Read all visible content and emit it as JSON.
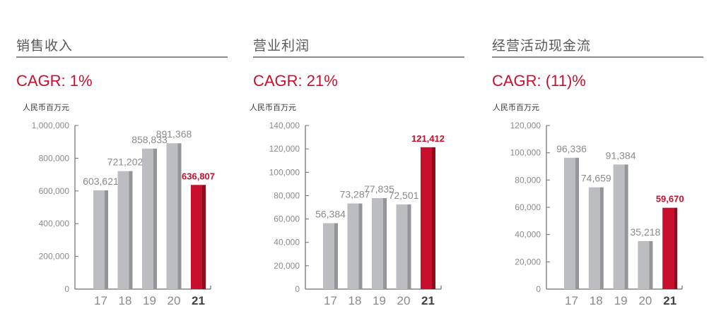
{
  "colors": {
    "accent": "#c8102e",
    "accent_dark": "#8e0c1c",
    "bar": "#bcbdc0",
    "bar_shade": "#939598",
    "axis": "#6d6d6d",
    "text_gray": "#8a8a8a"
  },
  "panels": [
    {
      "title": "销售收入",
      "cagr": "CAGR: 1%",
      "unit": "人民币百万元"
    },
    {
      "title": "营业利润",
      "cagr": "CAGR: 21%",
      "unit": "人民币百万元"
    },
    {
      "title": "经营活动现金流",
      "cagr": "CAGR: (11)%",
      "unit": "人民币百万元"
    }
  ],
  "chart_data": [
    {
      "type": "bar",
      "title": "销售收入",
      "subtitle": "CAGR: 1%",
      "ylabel": "人民币百万元",
      "xlabel": "",
      "categories": [
        "17",
        "18",
        "19",
        "20",
        "21"
      ],
      "values": [
        603621,
        721202,
        858833,
        891368,
        636807
      ],
      "value_labels": [
        "603,621",
        "721,202",
        "858,833",
        "891,368",
        "636,807"
      ],
      "highlight_index": 4,
      "ylim": [
        0,
        1000000
      ],
      "yticks": [
        0,
        200000,
        400000,
        600000,
        800000,
        1000000
      ],
      "ytick_labels": [
        "0",
        "200,000",
        "400,000",
        "600,000",
        "800,000",
        "1,000,000"
      ],
      "grid": false,
      "legend": null
    },
    {
      "type": "bar",
      "title": "营业利润",
      "subtitle": "CAGR: 21%",
      "ylabel": "人民币百万元",
      "xlabel": "",
      "categories": [
        "17",
        "18",
        "19",
        "20",
        "21"
      ],
      "values": [
        56384,
        73287,
        77835,
        72501,
        121412
      ],
      "value_labels": [
        "56,384",
        "73,287",
        "77,835",
        "72,501",
        "121,412"
      ],
      "highlight_index": 4,
      "ylim": [
        0,
        140000
      ],
      "yticks": [
        0,
        20000,
        40000,
        60000,
        80000,
        100000,
        120000,
        140000
      ],
      "ytick_labels": [
        "0",
        "20,000",
        "40,000",
        "60,000",
        "80,000",
        "100,000",
        "120,000",
        "140,000"
      ],
      "grid": false,
      "legend": null
    },
    {
      "type": "bar",
      "title": "经营活动现金流",
      "subtitle": "CAGR: (11)%",
      "ylabel": "人民币百万元",
      "xlabel": "",
      "categories": [
        "17",
        "18",
        "19",
        "20",
        "21"
      ],
      "values": [
        96336,
        74659,
        91384,
        35218,
        59670
      ],
      "value_labels": [
        "96,336",
        "74,659",
        "91,384",
        "35,218",
        "59,670"
      ],
      "highlight_index": 4,
      "ylim": [
        0,
        120000
      ],
      "yticks": [
        0,
        20000,
        40000,
        60000,
        80000,
        100000,
        120000
      ],
      "ytick_labels": [
        "0",
        "20,000",
        "40,000",
        "60,000",
        "80,000",
        "100,000",
        "120,000"
      ],
      "grid": false,
      "legend": null
    }
  ]
}
